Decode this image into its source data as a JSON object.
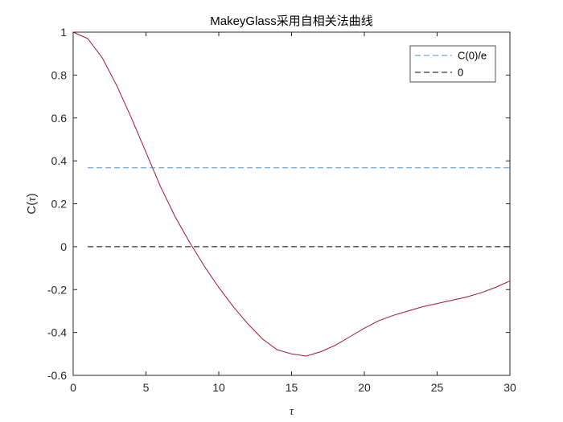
{
  "chart_data": {
    "type": "line",
    "title": "MakeyGlass采用自相关法曲线",
    "xlabel": "τ",
    "ylabel_prefix": "C(",
    "ylabel_symbol": "τ",
    "ylabel_suffix": ")",
    "xlim": [
      0,
      30
    ],
    "ylim": [
      -0.6,
      1
    ],
    "xticks": [
      0,
      5,
      10,
      15,
      20,
      25,
      30
    ],
    "yticks": [
      -0.6,
      -0.4,
      -0.2,
      0,
      0.2,
      0.4,
      0.6,
      0.8,
      1
    ],
    "grid": false,
    "legend_position": "top-right",
    "series": [
      {
        "x": [
          0,
          1,
          2,
          3,
          4,
          5,
          6,
          7,
          8,
          9,
          10,
          11,
          12,
          13,
          14,
          15,
          16,
          17,
          18,
          19,
          20,
          21,
          22,
          23,
          24,
          25,
          26,
          27,
          28,
          29,
          30
        ],
        "y": [
          1,
          0.97,
          0.88,
          0.75,
          0.6,
          0.44,
          0.28,
          0.14,
          0.02,
          -0.09,
          -0.19,
          -0.28,
          -0.36,
          -0.43,
          -0.48,
          -0.5,
          -0.51,
          -0.49,
          -0.46,
          -0.42,
          -0.38,
          -0.345,
          -0.32,
          -0.3,
          -0.28,
          -0.265,
          -0.25,
          -0.235,
          -0.215,
          -0.19,
          -0.16
        ],
        "color": "#A2142F",
        "style": "solid"
      },
      {
        "name": "C(0)/e",
        "x": [
          1,
          30
        ],
        "y": [
          0.3679,
          0.3679
        ],
        "color": "#4A90D0",
        "style": "dashed"
      },
      {
        "name": "0",
        "x": [
          1,
          30
        ],
        "y": [
          0,
          0
        ],
        "color": "#000000",
        "style": "dashed"
      }
    ]
  }
}
